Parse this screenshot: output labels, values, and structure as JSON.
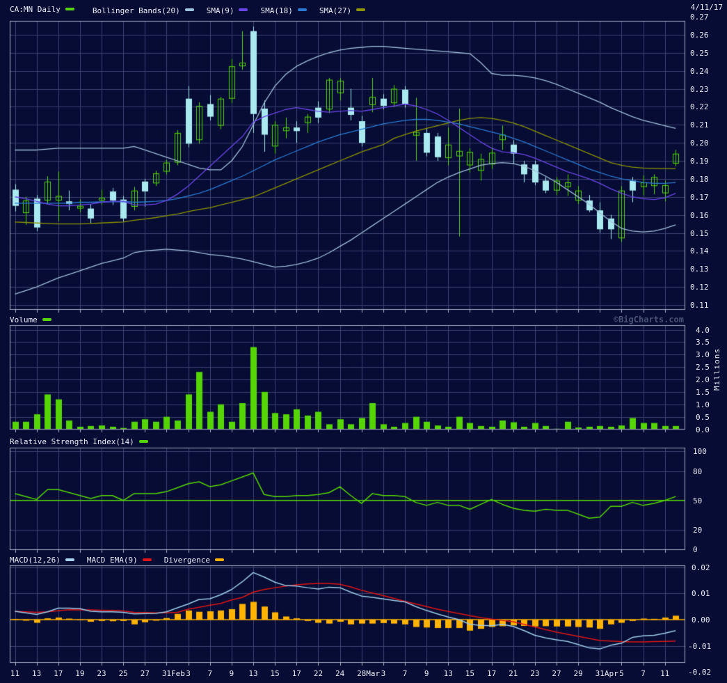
{
  "header": {
    "title": "CA:MN Daily",
    "date": "4/11/17",
    "overlay_legends": [
      {
        "label": "Bollinger Bands(20)",
        "color": "#9fc4e2"
      },
      {
        "label": "SMA(9)",
        "color": "#6a46e8"
      },
      {
        "label": "SMA(18)",
        "color": "#2b7bd4"
      },
      {
        "label": "SMA(27)",
        "color": "#8c9400"
      }
    ]
  },
  "watermark": "©BigCharts.com",
  "volume_legend": {
    "label": "Volume"
  },
  "rsi_legend": {
    "label": "Relative Strength Index(14)"
  },
  "macd_legends": [
    {
      "label": "MACD(12,26)",
      "color": "#a9d3ee"
    },
    {
      "label": "MACD EMA(9)",
      "color": "#dd1515"
    },
    {
      "label": "Divergence",
      "color": "#ffb300"
    }
  ],
  "colors": {
    "background": "#060c34",
    "grid": "#3c4370",
    "frame": "#a6abc2",
    "text": "#e9ecf6",
    "green": "#55d505",
    "down_candle": "#a9e9ef",
    "bollinger": "#a2bedb",
    "sma9": "#6a46e8",
    "sma18": "#2b7bd4",
    "sma27": "#8c9400",
    "macd_line": "#9fcbe8",
    "macd_signal": "#dd1515",
    "divergence": "#ffb300",
    "watermark": "#4a5276"
  },
  "chart_data": {
    "type": "candlestick",
    "title": "CA:MN Daily",
    "date_label": "4/11/17",
    "n_points": 62,
    "x_tick_labels": [
      "11",
      "13",
      "17",
      "19",
      "23",
      "25",
      "27",
      "31Feb",
      "3",
      "7",
      "9",
      "13",
      "15",
      "17",
      "22",
      "24",
      "28Mar",
      "3",
      "7",
      "9",
      "13",
      "15",
      "17",
      "21",
      "23",
      "27",
      "29",
      "31Apr",
      "5",
      "7",
      "11"
    ],
    "price_panel": {
      "ylim": [
        0.11,
        0.27
      ],
      "y_tick_labels": [
        "0.27",
        "0.26",
        "0.25",
        "0.24",
        "0.23",
        "0.22",
        "0.21",
        "0.20",
        "0.19",
        "0.18",
        "0.17",
        "0.16",
        "0.15",
        "0.14",
        "0.13",
        "0.12",
        "0.11"
      ],
      "candles_ohlc": [
        [
          0.174,
          0.177,
          0.162,
          0.165
        ],
        [
          0.161,
          0.17,
          0.1545,
          0.168
        ],
        [
          0.169,
          0.171,
          0.151,
          0.153
        ],
        [
          0.168,
          0.1815,
          0.166,
          0.1785
        ],
        [
          0.168,
          0.184,
          0.1565,
          0.1705
        ],
        [
          0.1675,
          0.1735,
          0.1625,
          0.166
        ],
        [
          0.1635,
          0.1685,
          0.1615,
          0.165
        ],
        [
          0.1635,
          0.166,
          0.1555,
          0.158
        ],
        [
          0.168,
          0.174,
          0.1655,
          0.1695
        ],
        [
          0.173,
          0.175,
          0.1655,
          0.168
        ],
        [
          0.1685,
          0.1705,
          0.156,
          0.158
        ],
        [
          0.1645,
          0.1755,
          0.1625,
          0.1735
        ],
        [
          0.1785,
          0.18,
          0.1645,
          0.173
        ],
        [
          0.1775,
          0.1845,
          0.176,
          0.183
        ],
        [
          0.184,
          0.1905,
          0.1825,
          0.189
        ],
        [
          0.189,
          0.207,
          0.1875,
          0.2055
        ],
        [
          0.2245,
          0.2315,
          0.1975,
          0.1995
        ],
        [
          0.2015,
          0.2225,
          0.1995,
          0.2205
        ],
        [
          0.2215,
          0.2265,
          0.2125,
          0.2145
        ],
        [
          0.2095,
          0.2255,
          0.2075,
          0.2245
        ],
        [
          0.2245,
          0.2465,
          0.222,
          0.2425
        ],
        [
          0.2425,
          0.262,
          0.2405,
          0.2445
        ],
        [
          0.262,
          0.2645,
          0.2055,
          0.216
        ],
        [
          0.219,
          0.2235,
          0.195,
          0.2045
        ],
        [
          0.198,
          0.212,
          0.194,
          0.21
        ],
        [
          0.2065,
          0.214,
          0.2025,
          0.2085
        ],
        [
          0.2085,
          0.212,
          0.2,
          0.2065
        ],
        [
          0.211,
          0.216,
          0.2055,
          0.2145
        ],
        [
          0.2195,
          0.223,
          0.211,
          0.214
        ],
        [
          0.2185,
          0.236,
          0.2165,
          0.235
        ],
        [
          0.2275,
          0.236,
          0.2235,
          0.2345
        ],
        [
          0.2195,
          0.23,
          0.2125,
          0.2155
        ],
        [
          0.212,
          0.215,
          0.198,
          0.2
        ],
        [
          0.221,
          0.236,
          0.217,
          0.2255
        ],
        [
          0.2245,
          0.227,
          0.2185,
          0.2205
        ],
        [
          0.222,
          0.232,
          0.22,
          0.23
        ],
        [
          0.2295,
          0.2315,
          0.2195,
          0.2215
        ],
        [
          0.204,
          0.225,
          0.19,
          0.206
        ],
        [
          0.2055,
          0.208,
          0.1925,
          0.1945
        ],
        [
          0.2035,
          0.2055,
          0.19,
          0.192
        ],
        [
          0.1915,
          0.2085,
          0.1875,
          0.199
        ],
        [
          0.1925,
          0.219,
          0.148,
          0.1955
        ],
        [
          0.1875,
          0.197,
          0.1835,
          0.195
        ],
        [
          0.1845,
          0.194,
          0.179,
          0.191
        ],
        [
          0.188,
          0.1975,
          0.1855,
          0.1945
        ],
        [
          0.2015,
          0.2095,
          0.196,
          0.2045
        ],
        [
          0.199,
          0.2015,
          0.1885,
          0.194
        ],
        [
          0.188,
          0.19,
          0.178,
          0.1825
        ],
        [
          0.188,
          0.19,
          0.1765,
          0.178
        ],
        [
          0.179,
          0.181,
          0.172,
          0.1735
        ],
        [
          0.1735,
          0.181,
          0.171,
          0.179
        ],
        [
          0.1755,
          0.1825,
          0.1705,
          0.178
        ],
        [
          0.168,
          0.176,
          0.166,
          0.1735
        ],
        [
          0.168,
          0.171,
          0.1615,
          0.1625
        ],
        [
          0.1625,
          0.167,
          0.15,
          0.152
        ],
        [
          0.158,
          0.16,
          0.1465,
          0.152
        ],
        [
          0.147,
          0.176,
          0.145,
          0.1735
        ],
        [
          0.179,
          0.181,
          0.167,
          0.1735
        ],
        [
          0.1755,
          0.182,
          0.171,
          0.178
        ],
        [
          0.176,
          0.1825,
          0.1715,
          0.181
        ],
        [
          0.172,
          0.179,
          0.1675,
          0.1765
        ],
        [
          0.1885,
          0.196,
          0.187,
          0.194
        ]
      ],
      "overlays": {
        "bollinger_upper": [
          0.196,
          0.196,
          0.196,
          0.1965,
          0.197,
          0.197,
          0.197,
          0.197,
          0.197,
          0.197,
          0.197,
          0.198,
          0.196,
          0.194,
          0.192,
          0.19,
          0.188,
          0.186,
          0.185,
          0.185,
          0.19,
          0.198,
          0.21,
          0.222,
          0.2315,
          0.238,
          0.2425,
          0.2455,
          0.248,
          0.25,
          0.2515,
          0.2525,
          0.253,
          0.2535,
          0.2535,
          0.253,
          0.2525,
          0.252,
          0.2515,
          0.251,
          0.2505,
          0.25,
          0.2495,
          0.2445,
          0.2385,
          0.2375,
          0.2375,
          0.237,
          0.236,
          0.2345,
          0.2325,
          0.23,
          0.2275,
          0.225,
          0.2225,
          0.2195,
          0.217,
          0.2145,
          0.2125,
          0.211,
          0.2095,
          0.208
        ],
        "bollinger_lower": [
          0.116,
          0.118,
          0.12,
          0.1225,
          0.125,
          0.127,
          0.129,
          0.131,
          0.133,
          0.1345,
          0.136,
          0.139,
          0.14,
          0.1405,
          0.141,
          0.1405,
          0.14,
          0.139,
          0.138,
          0.1375,
          0.1365,
          0.1355,
          0.134,
          0.1325,
          0.131,
          0.1315,
          0.1325,
          0.134,
          0.136,
          0.139,
          0.1425,
          0.146,
          0.15,
          0.154,
          0.158,
          0.162,
          0.166,
          0.17,
          0.174,
          0.178,
          0.181,
          0.1835,
          0.1855,
          0.1875,
          0.1885,
          0.189,
          0.1885,
          0.187,
          0.1845,
          0.1815,
          0.178,
          0.174,
          0.17,
          0.166,
          0.161,
          0.1565,
          0.1525,
          0.151,
          0.1505,
          0.151,
          0.1525,
          0.1545
        ],
        "sma9": [
          0.17,
          0.169,
          0.1675,
          0.166,
          0.165,
          0.165,
          0.1655,
          0.166,
          0.167,
          0.1675,
          0.1675,
          0.1655,
          0.1655,
          0.166,
          0.168,
          0.1715,
          0.176,
          0.1815,
          0.187,
          0.1925,
          0.198,
          0.2035,
          0.2115,
          0.2145,
          0.2165,
          0.2185,
          0.2195,
          0.2185,
          0.2175,
          0.217,
          0.2175,
          0.218,
          0.2175,
          0.2185,
          0.2195,
          0.2205,
          0.2215,
          0.2205,
          0.2185,
          0.216,
          0.2125,
          0.2085,
          0.2045,
          0.2005,
          0.197,
          0.195,
          0.1945,
          0.1935,
          0.1915,
          0.189,
          0.1865,
          0.184,
          0.182,
          0.18,
          0.1775,
          0.1745,
          0.172,
          0.17,
          0.169,
          0.1685,
          0.1695,
          0.172
        ],
        "sma18": [
          0.1665,
          0.1665,
          0.1665,
          0.1665,
          0.1665,
          0.1665,
          0.167,
          0.167,
          0.1672,
          0.1673,
          0.1674,
          0.167,
          0.1672,
          0.1675,
          0.168,
          0.169,
          0.1705,
          0.172,
          0.174,
          0.1765,
          0.179,
          0.1815,
          0.1845,
          0.1875,
          0.1905,
          0.193,
          0.1955,
          0.198,
          0.2005,
          0.2025,
          0.2045,
          0.206,
          0.2075,
          0.209,
          0.2105,
          0.2115,
          0.2125,
          0.213,
          0.213,
          0.2125,
          0.2115,
          0.2105,
          0.209,
          0.2075,
          0.206,
          0.2045,
          0.2025,
          0.2005,
          0.198,
          0.1955,
          0.193,
          0.1905,
          0.188,
          0.1855,
          0.1835,
          0.1815,
          0.18,
          0.179,
          0.178,
          0.1775,
          0.1775,
          0.178
        ],
        "sma27": [
          0.156,
          0.1558,
          0.1555,
          0.1552,
          0.155,
          0.155,
          0.155,
          0.1552,
          0.1555,
          0.1558,
          0.156,
          0.157,
          0.1577,
          0.1585,
          0.1595,
          0.1605,
          0.1618,
          0.163,
          0.164,
          0.1655,
          0.167,
          0.1685,
          0.17,
          0.1725,
          0.175,
          0.1775,
          0.18,
          0.1825,
          0.185,
          0.1875,
          0.19,
          0.1925,
          0.195,
          0.197,
          0.199,
          0.2025,
          0.2045,
          0.2065,
          0.208,
          0.2095,
          0.211,
          0.2125,
          0.2135,
          0.214,
          0.2135,
          0.2125,
          0.211,
          0.209,
          0.2065,
          0.204,
          0.2015,
          0.199,
          0.1965,
          0.194,
          0.1915,
          0.189,
          0.1875,
          0.1865,
          0.186,
          0.1858,
          0.1857,
          0.1856
        ]
      }
    },
    "volume_panel": {
      "ylim": [
        0,
        4
      ],
      "unit": "Millions",
      "y_tick_labels": [
        "4.0",
        "3.5",
        "3.0",
        "2.5",
        "2.0",
        "1.5",
        "1.0",
        "0.5",
        "0.0"
      ],
      "values": [
        0.3,
        0.3,
        0.6,
        1.4,
        1.2,
        0.35,
        0.1,
        0.13,
        0.15,
        0.1,
        0.05,
        0.3,
        0.4,
        0.3,
        0.5,
        0.35,
        1.4,
        2.3,
        0.7,
        1.0,
        0.3,
        1.05,
        3.3,
        1.5,
        0.65,
        0.6,
        0.8,
        0.55,
        0.7,
        0.2,
        0.4,
        0.2,
        0.45,
        1.05,
        0.2,
        0.1,
        0.25,
        0.5,
        0.3,
        0.15,
        0.1,
        0.5,
        0.25,
        0.13,
        0.1,
        0.35,
        0.28,
        0.1,
        0.25,
        0.13,
        0.02,
        0.3,
        0.07,
        0.1,
        0.13,
        0.1,
        0.15,
        0.45,
        0.25,
        0.25,
        0.13,
        0.13
      ]
    },
    "rsi_panel": {
      "ylim": [
        0,
        100
      ],
      "period": 14,
      "reference": 50,
      "y_tick_labels": [
        "100",
        "80",
        "50",
        "20",
        "0"
      ],
      "values": [
        57,
        54,
        51,
        61,
        61,
        58,
        55,
        52,
        55,
        55,
        50,
        57,
        57,
        57,
        59,
        63,
        67,
        69,
        64,
        66,
        70,
        74,
        78,
        56,
        54,
        54,
        55,
        55,
        56,
        58,
        64,
        55,
        47,
        57,
        55,
        55,
        54,
        48,
        45,
        48,
        45,
        45,
        41,
        46,
        51,
        46,
        42,
        40,
        39,
        41,
        40,
        40,
        36,
        32,
        33,
        44,
        44,
        48,
        45,
        47,
        50,
        54
      ]
    },
    "macd_panel": {
      "ylim": [
        -0.02,
        0.02
      ],
      "y_tick_labels": [
        "0.02",
        "0.01",
        "0.00",
        "-0.01",
        "-0.02"
      ],
      "macd": [
        0.0032,
        0.0026,
        0.002,
        0.003,
        0.0044,
        0.0044,
        0.0042,
        0.0032,
        0.003,
        0.003,
        0.0028,
        0.0022,
        0.0023,
        0.0024,
        0.003,
        0.0045,
        0.006,
        0.0077,
        0.008,
        0.0095,
        0.0115,
        0.0145,
        0.018,
        0.0163,
        0.0143,
        0.013,
        0.0128,
        0.0122,
        0.0117,
        0.0124,
        0.0122,
        0.0105,
        0.009,
        0.0085,
        0.0079,
        0.0073,
        0.0068,
        0.005,
        0.0035,
        0.0022,
        0.001,
        0.0,
        -0.0018,
        -0.0022,
        -0.0023,
        -0.0018,
        -0.0026,
        -0.0042,
        -0.006,
        -0.007,
        -0.0077,
        -0.0083,
        -0.0095,
        -0.0108,
        -0.0112,
        -0.0098,
        -0.009,
        -0.0068,
        -0.0062,
        -0.006,
        -0.0052,
        -0.0042
      ],
      "signal": [
        0.0031,
        0.003,
        0.0028,
        0.003,
        0.0034,
        0.0038,
        0.0037,
        0.0037,
        0.0036,
        0.0035,
        0.0033,
        0.0028,
        0.0027,
        0.0026,
        0.0026,
        0.0028,
        0.004,
        0.0047,
        0.0055,
        0.0062,
        0.0075,
        0.0085,
        0.0105,
        0.0115,
        0.0122,
        0.0128,
        0.0133,
        0.0136,
        0.0138,
        0.0138,
        0.0135,
        0.0125,
        0.0112,
        0.0102,
        0.0092,
        0.0081,
        0.007,
        0.006,
        0.005,
        0.004,
        0.0031,
        0.0023,
        0.0015,
        0.0008,
        0.0002,
        -0.0003,
        -0.0008,
        -0.0018,
        -0.0028,
        -0.0038,
        -0.0048,
        -0.0056,
        -0.0064,
        -0.0072,
        -0.008,
        -0.0082,
        -0.0084,
        -0.0085,
        -0.0085,
        -0.0084,
        -0.0083,
        -0.0082
      ],
      "divergence": [
        0.0002,
        -0.0004,
        -0.0012,
        0.0005,
        0.0008,
        0.0004,
        -0.0002,
        -0.0008,
        -0.0005,
        -0.0006,
        -0.0005,
        -0.0018,
        -0.001,
        -0.0004,
        0.0006,
        0.0022,
        0.0035,
        0.003,
        0.0032,
        0.0035,
        0.004,
        0.006,
        0.0068,
        0.005,
        0.0028,
        0.0012,
        0.0005,
        -0.0005,
        -0.0012,
        -0.0015,
        -0.0008,
        -0.0018,
        -0.0015,
        -0.0015,
        -0.0013,
        -0.0015,
        -0.0018,
        -0.0028,
        -0.003,
        -0.0032,
        -0.0032,
        -0.0032,
        -0.0042,
        -0.0035,
        -0.0028,
        -0.0025,
        -0.0022,
        -0.0024,
        -0.0026,
        -0.0025,
        -0.0026,
        -0.0026,
        -0.0028,
        -0.003,
        -0.0035,
        -0.0018,
        -0.0012,
        -0.0005,
        0.0004,
        0.0003,
        0.0008,
        0.0015
      ]
    }
  }
}
